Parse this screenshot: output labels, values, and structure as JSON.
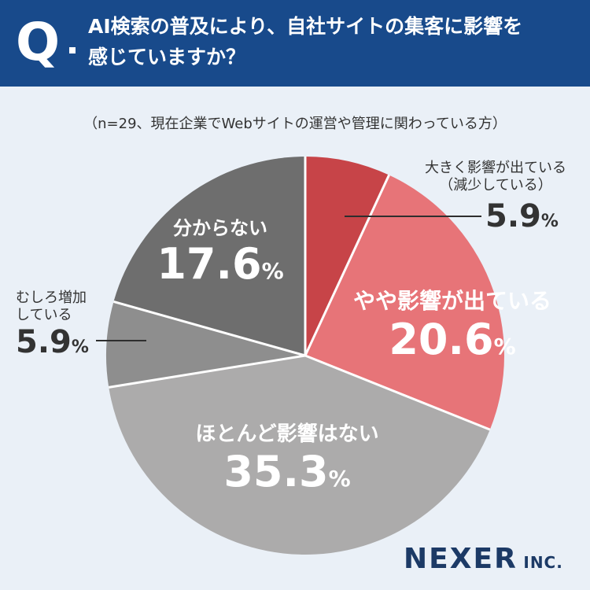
{
  "header": {
    "q": "Q",
    "line1": "AI検索の普及により、自社サイトの集客に影響を",
    "line2": "感じていますか？"
  },
  "note": "（n=29、現在企業でWebサイトの運営や管理に関わっている方）",
  "chart_data": {
    "type": "pie",
    "title": "AI検索の普及により、自社サイトの集客に影響を感じていますか？",
    "slices": [
      {
        "label": "大きく影響が出ている（減少している）",
        "value": 5.9,
        "color": "#c74448"
      },
      {
        "label": "やや影響が出ている",
        "value": 20.6,
        "color": "#e77478"
      },
      {
        "label": "ほとんど影響はない",
        "value": 35.3,
        "color": "#acabab"
      },
      {
        "label": "むしろ増加している",
        "value": 5.9,
        "color": "#8e8e8e"
      },
      {
        "label": "分からない",
        "value": 17.6,
        "color": "#6e6e6e"
      }
    ],
    "unit": "%"
  },
  "labels": {
    "s0_line1": "大きく影響が出ている",
    "s0_line2": "（減少している）",
    "s0_value": "5.9",
    "s1_name": "やや影響が出ている",
    "s1_value": "20.6",
    "s2_name": "ほとんど影響はない",
    "s2_value": "35.3",
    "s3_line1": "むしろ増加",
    "s3_line2": "している",
    "s3_value": "5.9",
    "s4_name": "分からない",
    "s4_value": "17.6",
    "pct": "%"
  },
  "logo": {
    "main": "NEXER",
    "sub": "INC."
  }
}
